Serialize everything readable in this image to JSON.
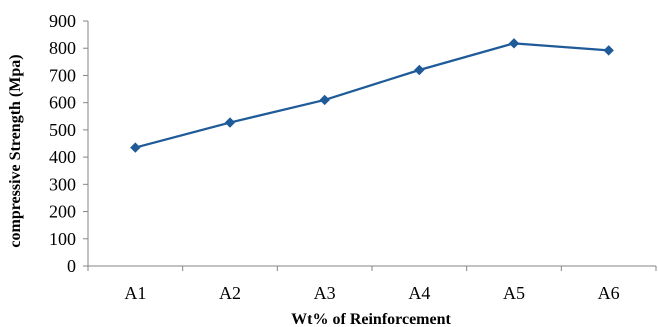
{
  "chart_data": {
    "type": "line",
    "title": "",
    "xlabel": "Wt% of Reinforcement",
    "ylabel": "compressive Strength (Mpa)",
    "categories": [
      "A1",
      "A2",
      "A3",
      "A4",
      "A5",
      "A6"
    ],
    "series": [
      {
        "values": [
          435,
          527,
          610,
          720,
          818,
          792
        ],
        "color": "#1F5B99",
        "marker": "diamond"
      }
    ],
    "ylim": [
      0,
      900
    ],
    "yticks": [
      "0",
      "100",
      "200",
      "300",
      "400",
      "500",
      "600",
      "700",
      "800",
      "900"
    ],
    "grid": false,
    "legend": "none"
  }
}
